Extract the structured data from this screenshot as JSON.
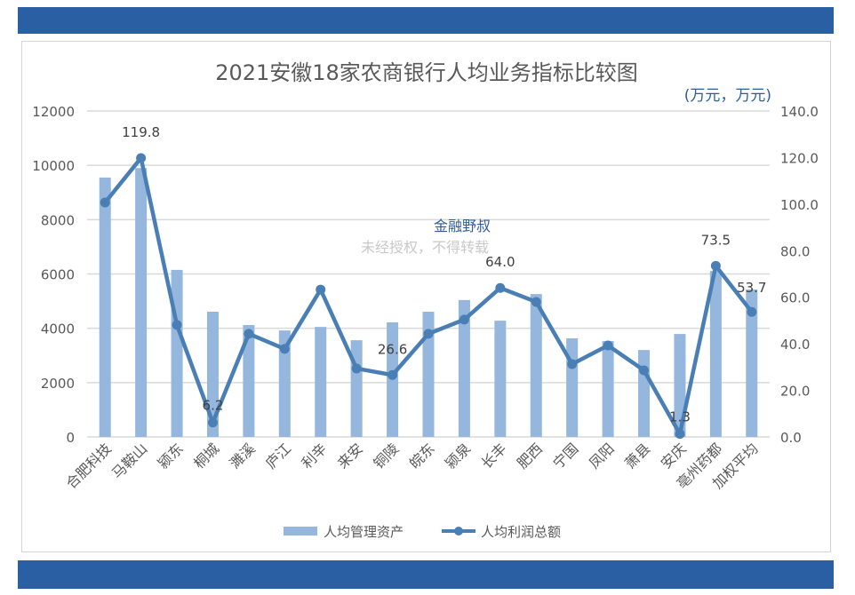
{
  "chart_data": {
    "type": "bar+line",
    "title": "2021安徽18家农商银行人均业务指标比较图",
    "unit_note": "(万元，万元)",
    "categories": [
      "合肥科技",
      "马鞍山",
      "颍东",
      "桐城",
      "濉溪",
      "庐江",
      "利辛",
      "来安",
      "铜陵",
      "皖东",
      "颍泉",
      "长丰",
      "肥西",
      "宁国",
      "凤阳",
      "萧县",
      "安庆",
      "亳州药都",
      "加权平均"
    ],
    "series": [
      {
        "name": "人均管理资产",
        "type": "bar",
        "axis": "left",
        "color": "#95b6dd",
        "values": [
          9550,
          9900,
          6150,
          4610,
          4120,
          3920,
          4050,
          3560,
          4220,
          4610,
          5040,
          4280,
          5260,
          3630,
          3530,
          3200,
          3790,
          6110,
          5430
        ]
      },
      {
        "name": "人均利润总额",
        "type": "line",
        "axis": "right",
        "color": "#4a7fb5",
        "values": [
          100.7,
          119.8,
          48.1,
          6.2,
          44.3,
          37.8,
          63.3,
          29.4,
          26.6,
          44.3,
          50.4,
          64.0,
          58.0,
          31.3,
          39.3,
          28.6,
          1.3,
          73.5,
          53.7
        ],
        "data_labels": {
          "1": "119.8",
          "3": "6.2",
          "8": "26.6",
          "11": "64.0",
          "16": "1.3",
          "17": "73.5",
          "18": "53.7"
        }
      }
    ],
    "left_axis": {
      "ylim": [
        0,
        12000
      ],
      "ticks": [
        "0",
        "2000",
        "4000",
        "6000",
        "8000",
        "10000",
        "12000"
      ]
    },
    "right_axis": {
      "ylim": [
        0,
        140
      ],
      "ticks": [
        "0.0",
        "20.0",
        "40.0",
        "60.0",
        "80.0",
        "100.0",
        "120.0",
        "140.0"
      ]
    },
    "grid": true,
    "legend": "bottom"
  },
  "watermark": {
    "brand": "金融野叔",
    "notice": "未经授权，不得转载"
  },
  "colors": {
    "band": "#2a5fa3",
    "grid": "#d9d9d9",
    "text": "#595959",
    "unit": "#2e5d9c"
  }
}
